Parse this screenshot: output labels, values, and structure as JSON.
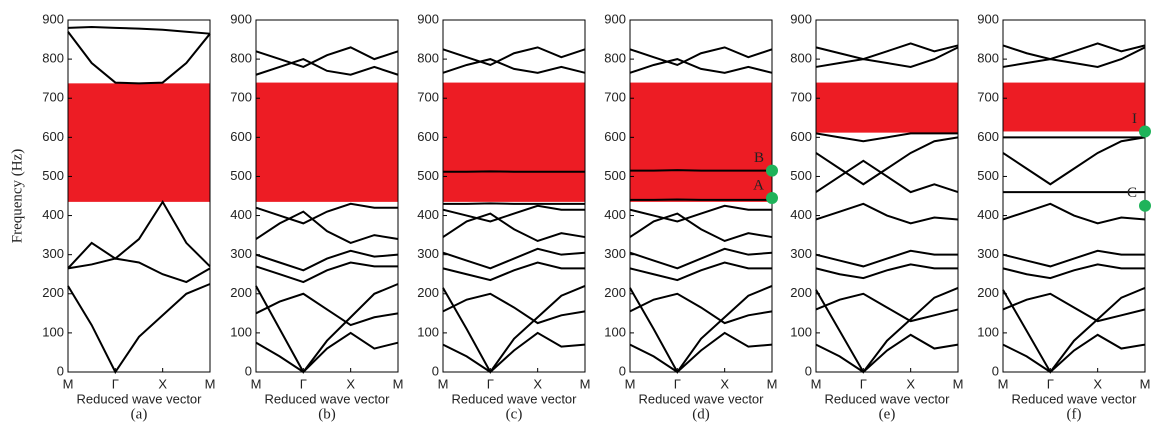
{
  "chart_data": [
    {
      "type": "band",
      "ylabel": "Frequency (Hz)",
      "xlabel": "Reduced wave vector",
      "caption": "(a)",
      "color": "#ed1c24",
      "ylim": [
        0,
        900
      ],
      "yticks": [
        0,
        100,
        200,
        300,
        400,
        500,
        600,
        700,
        800,
        900
      ],
      "xlim": [
        0,
        3
      ],
      "xticks": [
        {
          "value": 0,
          "label": "M"
        },
        {
          "value": 1,
          "label": "Γ"
        },
        {
          "value": 2,
          "label": "X"
        },
        {
          "value": 3,
          "label": "M"
        }
      ],
      "gap": [
        435,
        738
      ],
      "x": [
        0,
        0.5,
        1,
        1.5,
        2,
        2.5,
        3
      ],
      "series": [
        {
          "values": [
            220,
            120,
            0,
            90,
            145,
            200,
            225
          ]
        },
        {
          "values": [
            265,
            275,
            290,
            280,
            250,
            230,
            265
          ]
        },
        {
          "values": [
            265,
            330,
            290,
            340,
            435,
            330,
            270
          ]
        },
        {
          "values": [
            870,
            790,
            740,
            738,
            740,
            790,
            865
          ]
        },
        {
          "values": [
            880,
            882,
            880,
            878,
            875,
            870,
            865
          ]
        }
      ]
    },
    {
      "type": "band",
      "xlabel": "Reduced wave vector",
      "caption": "(b)",
      "color": "#ed1c24",
      "ylim": [
        0,
        900
      ],
      "yticks": [
        0,
        100,
        200,
        300,
        400,
        500,
        600,
        700,
        800,
        900
      ],
      "xlim": [
        0,
        3
      ],
      "xticks": [
        {
          "value": 0,
          "label": "M"
        },
        {
          "value": 1,
          "label": "Γ"
        },
        {
          "value": 2,
          "label": "X"
        },
        {
          "value": 3,
          "label": "M"
        }
      ],
      "gap": [
        435,
        740
      ],
      "x": [
        0,
        0.5,
        1,
        1.5,
        2,
        2.5,
        3
      ],
      "series": [
        {
          "values": [
            220,
            110,
            0,
            80,
            140,
            200,
            225
          ]
        },
        {
          "values": [
            75,
            40,
            0,
            60,
            100,
            60,
            75
          ]
        },
        {
          "values": [
            150,
            180,
            200,
            160,
            120,
            140,
            150
          ]
        },
        {
          "values": [
            270,
            250,
            230,
            260,
            280,
            270,
            270
          ]
        },
        {
          "values": [
            300,
            280,
            260,
            290,
            310,
            295,
            300
          ]
        },
        {
          "values": [
            340,
            380,
            410,
            360,
            330,
            350,
            340
          ]
        },
        {
          "values": [
            420,
            400,
            380,
            410,
            430,
            420,
            420
          ]
        },
        {
          "values": [
            760,
            780,
            800,
            770,
            760,
            780,
            760
          ]
        },
        {
          "values": [
            820,
            800,
            780,
            810,
            830,
            800,
            820
          ]
        }
      ]
    },
    {
      "type": "band",
      "xlabel": "Reduced wave vector",
      "caption": "(c)",
      "color": "#ed1c24",
      "ylim": [
        0,
        900
      ],
      "yticks": [
        0,
        100,
        200,
        300,
        400,
        500,
        600,
        700,
        800,
        900
      ],
      "xlim": [
        0,
        3
      ],
      "xticks": [
        {
          "value": 0,
          "label": "M"
        },
        {
          "value": 1,
          "label": "Γ"
        },
        {
          "value": 2,
          "label": "X"
        },
        {
          "value": 3,
          "label": "M"
        }
      ],
      "gap": [
        435,
        740
      ],
      "x": [
        0,
        0.5,
        1,
        1.5,
        2,
        2.5,
        3
      ],
      "series": [
        {
          "values": [
            215,
            110,
            0,
            85,
            140,
            195,
            220
          ]
        },
        {
          "values": [
            70,
            40,
            0,
            55,
            100,
            65,
            70
          ]
        },
        {
          "values": [
            155,
            185,
            200,
            165,
            125,
            145,
            155
          ]
        },
        {
          "values": [
            265,
            250,
            235,
            260,
            280,
            265,
            265
          ]
        },
        {
          "values": [
            305,
            285,
            265,
            290,
            315,
            300,
            305
          ]
        },
        {
          "values": [
            345,
            385,
            405,
            365,
            335,
            355,
            345
          ]
        },
        {
          "values": [
            415,
            400,
            385,
            405,
            425,
            415,
            415
          ]
        },
        {
          "values": [
            430,
            430,
            431,
            430,
            430,
            430,
            430
          ]
        },
        {
          "values": [
            512,
            512,
            513,
            512,
            512,
            512,
            512
          ]
        },
        {
          "values": [
            765,
            785,
            800,
            775,
            765,
            780,
            765
          ]
        },
        {
          "values": [
            825,
            805,
            785,
            815,
            830,
            805,
            825
          ]
        }
      ]
    },
    {
      "type": "band",
      "xlabel": "Reduced wave vector",
      "caption": "(d)",
      "color": "#ed1c24",
      "ylim": [
        0,
        900
      ],
      "yticks": [
        0,
        100,
        200,
        300,
        400,
        500,
        600,
        700,
        800,
        900
      ],
      "xlim": [
        0,
        3
      ],
      "xticks": [
        {
          "value": 0,
          "label": "M"
        },
        {
          "value": 1,
          "label": "Γ"
        },
        {
          "value": 2,
          "label": "X"
        },
        {
          "value": 3,
          "label": "M"
        }
      ],
      "gap": [
        435,
        740
      ],
      "x": [
        0,
        0.5,
        1,
        1.5,
        2,
        2.5,
        3
      ],
      "series": [
        {
          "values": [
            215,
            110,
            0,
            85,
            140,
            195,
            220
          ]
        },
        {
          "values": [
            70,
            40,
            0,
            55,
            100,
            65,
            70
          ]
        },
        {
          "values": [
            155,
            185,
            200,
            165,
            125,
            145,
            155
          ]
        },
        {
          "values": [
            265,
            250,
            235,
            260,
            280,
            265,
            265
          ]
        },
        {
          "values": [
            305,
            285,
            265,
            290,
            315,
            300,
            305
          ]
        },
        {
          "values": [
            345,
            385,
            405,
            365,
            335,
            355,
            345
          ]
        },
        {
          "values": [
            415,
            400,
            385,
            405,
            425,
            415,
            415
          ]
        },
        {
          "values": [
            440,
            440,
            441,
            440,
            440,
            440,
            440
          ]
        },
        {
          "values": [
            515,
            515,
            516,
            515,
            515,
            515,
            515
          ]
        },
        {
          "values": [
            765,
            785,
            800,
            775,
            765,
            780,
            765
          ]
        },
        {
          "values": [
            825,
            805,
            785,
            815,
            830,
            805,
            825
          ]
        }
      ],
      "points": [
        {
          "label": "B",
          "x": 3,
          "value": 515
        },
        {
          "label": "A",
          "x": 3,
          "value": 445
        }
      ],
      "point_color": "#1fb35a"
    },
    {
      "type": "band",
      "xlabel": "Reduced wave vector",
      "caption": "(e)",
      "color": "#ed1c24",
      "ylim": [
        0,
        900
      ],
      "yticks": [
        0,
        100,
        200,
        300,
        400,
        500,
        600,
        700,
        800,
        900
      ],
      "xlim": [
        0,
        3
      ],
      "xticks": [
        {
          "value": 0,
          "label": "M"
        },
        {
          "value": 1,
          "label": "Γ"
        },
        {
          "value": 2,
          "label": "X"
        },
        {
          "value": 3,
          "label": "M"
        }
      ],
      "gap": [
        612,
        740
      ],
      "x": [
        0,
        0.5,
        1,
        1.5,
        2,
        2.5,
        3
      ],
      "series": [
        {
          "values": [
            210,
            105,
            0,
            80,
            135,
            190,
            215
          ]
        },
        {
          "values": [
            70,
            40,
            0,
            55,
            95,
            60,
            70
          ]
        },
        {
          "values": [
            160,
            185,
            200,
            165,
            130,
            145,
            160
          ]
        },
        {
          "values": [
            265,
            250,
            240,
            260,
            275,
            265,
            265
          ]
        },
        {
          "values": [
            300,
            285,
            270,
            290,
            310,
            300,
            300
          ]
        },
        {
          "values": [
            390,
            410,
            430,
            400,
            380,
            395,
            390
          ]
        },
        {
          "values": [
            460,
            500,
            540,
            500,
            460,
            480,
            460
          ]
        },
        {
          "values": [
            560,
            520,
            480,
            520,
            560,
            590,
            600
          ]
        },
        {
          "values": [
            610,
            600,
            590,
            600,
            610,
            610,
            610
          ]
        },
        {
          "values": [
            780,
            790,
            800,
            790,
            780,
            800,
            830
          ]
        },
        {
          "values": [
            830,
            815,
            800,
            820,
            840,
            820,
            835
          ]
        }
      ]
    },
    {
      "type": "band",
      "xlabel": "Reduced wave vector",
      "caption": "(f)",
      "color": "#ed1c24",
      "ylim": [
        0,
        900
      ],
      "yticks": [
        0,
        100,
        200,
        300,
        400,
        500,
        600,
        700,
        800,
        900
      ],
      "xlim": [
        0,
        3
      ],
      "xticks": [
        {
          "value": 0,
          "label": "M"
        },
        {
          "value": 1,
          "label": "Γ"
        },
        {
          "value": 2,
          "label": "X"
        },
        {
          "value": 3,
          "label": "M"
        }
      ],
      "gap": [
        615,
        740
      ],
      "x": [
        0,
        0.5,
        1,
        1.5,
        2,
        2.5,
        3
      ],
      "series": [
        {
          "values": [
            210,
            105,
            0,
            80,
            135,
            190,
            215
          ]
        },
        {
          "values": [
            70,
            40,
            0,
            55,
            95,
            60,
            70
          ]
        },
        {
          "values": [
            160,
            185,
            200,
            165,
            130,
            145,
            160
          ]
        },
        {
          "values": [
            265,
            250,
            240,
            260,
            275,
            265,
            265
          ]
        },
        {
          "values": [
            300,
            285,
            270,
            290,
            310,
            300,
            300
          ]
        },
        {
          "values": [
            390,
            410,
            430,
            400,
            380,
            395,
            390
          ]
        },
        {
          "values": [
            460,
            460,
            460,
            460,
            460,
            460,
            460
          ]
        },
        {
          "values": [
            560,
            520,
            480,
            520,
            560,
            590,
            600
          ]
        },
        {
          "values": [
            600,
            600,
            600,
            600,
            600,
            600,
            600
          ]
        },
        {
          "values": [
            780,
            790,
            800,
            790,
            780,
            800,
            830
          ]
        },
        {
          "values": [
            835,
            815,
            800,
            820,
            840,
            820,
            835
          ]
        }
      ],
      "points": [
        {
          "label": "I",
          "x": 3,
          "value": 615
        },
        {
          "label": "C",
          "x": 3,
          "value": 425
        }
      ],
      "point_color": "#1fb35a"
    }
  ]
}
